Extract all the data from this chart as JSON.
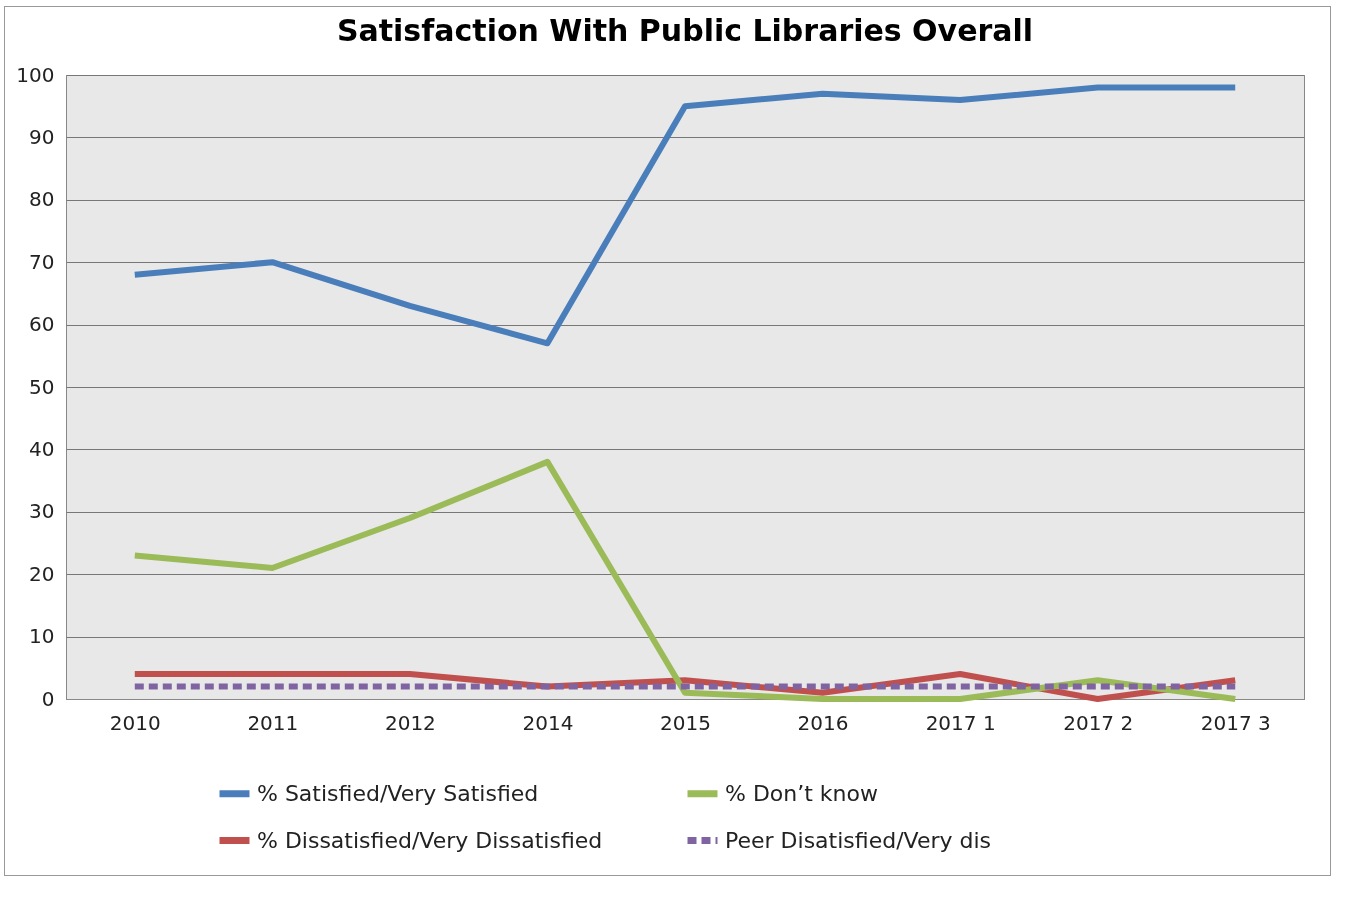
{
  "chart_data": {
    "type": "line",
    "title": "Satisfaction With Public Libraries Overall",
    "categories": [
      "2010",
      "2011",
      "2012",
      "2014",
      "2015",
      "2016",
      "2017 1",
      "2017 2",
      "2017 3"
    ],
    "series": [
      {
        "name": "% Satisfied/Very Satisfied",
        "color": "#4a7ebb",
        "values": [
          68,
          70,
          63,
          57,
          95,
          97,
          96,
          98,
          98
        ]
      },
      {
        "name": "% Dissatisfied/Very Dissatisfied",
        "color": "#c0504d",
        "values": [
          4,
          4,
          4,
          2,
          3,
          1,
          4,
          0,
          3
        ]
      },
      {
        "name": "% Don’t know",
        "color": "#9bbb59",
        "values": [
          23,
          21,
          29,
          38,
          1,
          0,
          0,
          3,
          0
        ]
      },
      {
        "name": "Peer Disatisfied/Very dis",
        "color": "#8064a2",
        "values": [
          2,
          2,
          2,
          2,
          2,
          2,
          2,
          2,
          2
        ],
        "line_style": "dashed"
      }
    ],
    "ylim": [
      0,
      100
    ],
    "yticks": [
      0,
      10,
      20,
      30,
      40,
      50,
      60,
      70,
      80,
      90,
      100
    ],
    "grid": "y",
    "legend": "bottom",
    "marker": "none"
  }
}
